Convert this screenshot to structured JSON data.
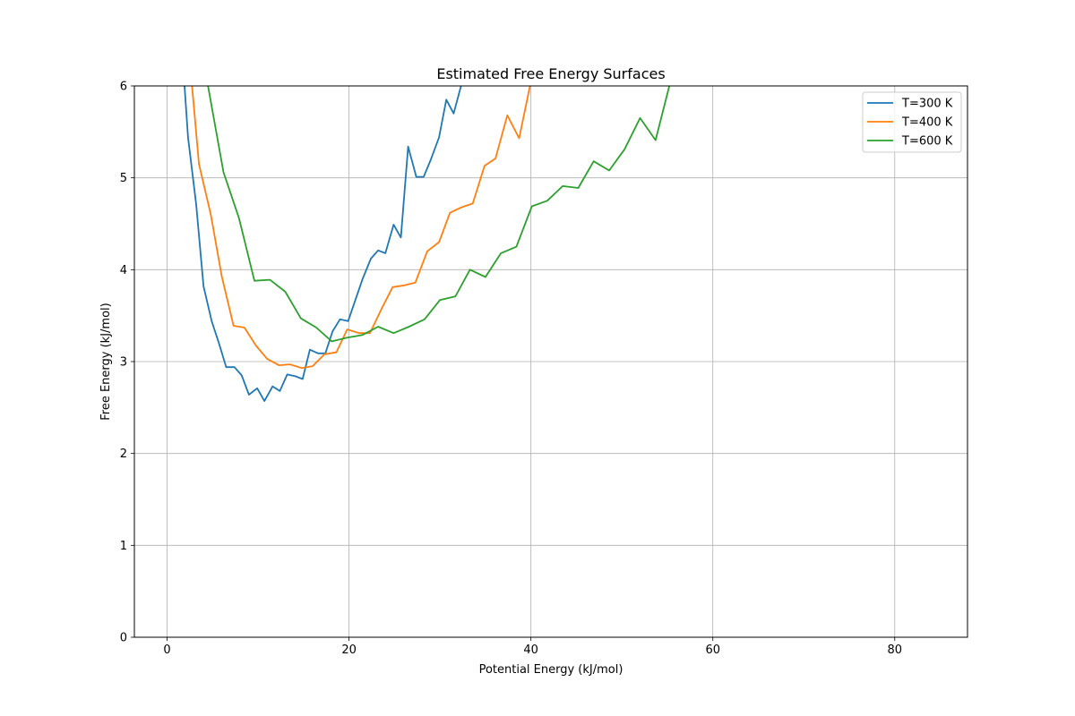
{
  "chart_data": {
    "type": "line",
    "title": "Estimated Free Energy Surfaces",
    "xlabel": "Potential Energy (kJ/mol)",
    "ylabel": "Free Energy (kJ/mol)",
    "xlim": [
      -3.6,
      88
    ],
    "ylim": [
      0,
      6
    ],
    "xticks": [
      0,
      20,
      40,
      60,
      80
    ],
    "yticks": [
      0,
      1,
      2,
      3,
      4,
      5,
      6
    ],
    "grid": true,
    "legend_position": "top-right",
    "series": [
      {
        "name": "T=300 K",
        "color": "#1f77b4",
        "x": [
          1.5,
          2.3,
          3.2,
          4.0,
          4.9,
          5.7,
          6.5,
          7.4,
          8.2,
          9.0,
          9.9,
          10.7,
          11.6,
          12.4,
          13.2,
          14.1,
          14.9,
          15.7,
          16.6,
          17.4,
          18.2,
          19.0,
          19.9,
          20.7,
          21.5,
          22.4,
          23.2,
          24.0,
          24.9,
          25.7,
          26.5,
          27.4,
          28.2,
          29.0,
          29.9,
          30.7,
          31.5,
          32.4,
          33.2
        ],
        "y": [
          6.6,
          5.44,
          4.71,
          3.82,
          3.44,
          3.2,
          2.94,
          2.94,
          2.85,
          2.64,
          2.71,
          2.57,
          2.73,
          2.68,
          2.86,
          2.84,
          2.81,
          3.13,
          3.09,
          3.09,
          3.33,
          3.46,
          3.44,
          3.67,
          3.9,
          4.12,
          4.21,
          4.18,
          4.49,
          4.35,
          5.34,
          5.01,
          5.01,
          5.2,
          5.44,
          5.85,
          5.7,
          6.03,
          6.3
        ]
      },
      {
        "name": "T=400 K",
        "color": "#ff7f0e",
        "x": [
          2.2,
          3.5,
          4.8,
          6.0,
          7.3,
          8.5,
          9.8,
          11.0,
          12.3,
          13.5,
          14.8,
          16.0,
          17.3,
          18.6,
          19.8,
          21.1,
          22.3,
          23.6,
          24.8,
          26.1,
          27.3,
          28.6,
          29.9,
          31.1,
          32.4,
          33.6,
          34.9,
          36.1,
          37.4,
          38.7,
          39.9,
          41.2
        ],
        "y": [
          6.6,
          5.15,
          4.6,
          3.93,
          3.39,
          3.37,
          3.17,
          3.03,
          2.96,
          2.97,
          2.93,
          2.95,
          3.08,
          3.1,
          3.35,
          3.31,
          3.31,
          3.58,
          3.81,
          3.83,
          3.86,
          4.2,
          4.3,
          4.62,
          4.68,
          4.72,
          5.13,
          5.21,
          5.68,
          5.43,
          6.0,
          6.5
        ]
      },
      {
        "name": "T=600 K",
        "color": "#2ca02c",
        "x": [
          3.5,
          4.5,
          6.2,
          7.9,
          9.6,
          11.3,
          13.0,
          14.7,
          16.4,
          18.1,
          19.8,
          21.5,
          23.2,
          24.9,
          26.6,
          28.3,
          30.0,
          31.7,
          33.3,
          35.0,
          36.7,
          38.4,
          40.1,
          41.8,
          43.5,
          45.2,
          46.9,
          48.6,
          50.3,
          52.0,
          53.7,
          55.4,
          56.5
        ],
        "y": [
          6.6,
          6.0,
          5.06,
          4.56,
          3.88,
          3.89,
          3.76,
          3.47,
          3.37,
          3.22,
          3.26,
          3.29,
          3.38,
          3.31,
          3.38,
          3.46,
          3.67,
          3.71,
          4.0,
          3.92,
          4.18,
          4.25,
          4.69,
          4.75,
          4.91,
          4.89,
          5.18,
          5.08,
          5.31,
          5.65,
          5.41,
          6.07,
          6.5
        ]
      }
    ]
  }
}
